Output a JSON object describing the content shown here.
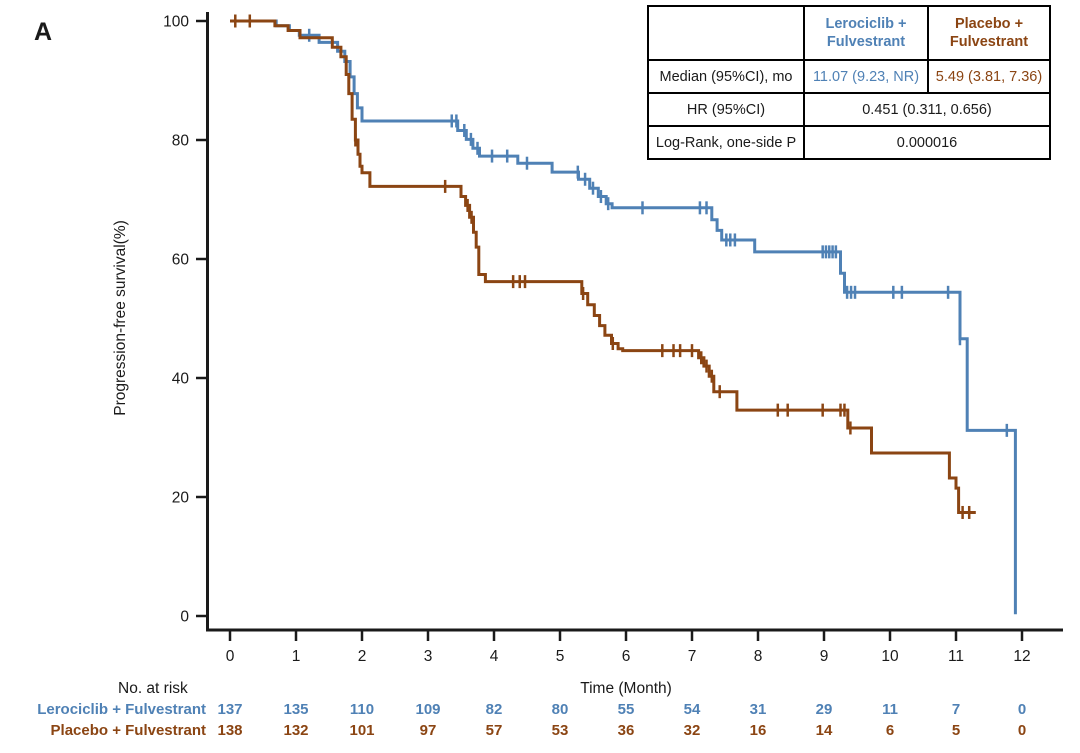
{
  "figure": {
    "panel_label": "A"
  },
  "colors": {
    "lerociclib": "#4F81B5",
    "placebo": "#8B4513",
    "axis": "#1a1a1a"
  },
  "chart_data": {
    "type": "line",
    "subtype": "kaplan-meier-step",
    "title": "",
    "xlabel": "Time (Month)",
    "ylabel": "Progression-free survival(%)",
    "xlim": [
      0,
      12.6
    ],
    "ylim": [
      0,
      100
    ],
    "x_ticks": [
      0,
      1,
      2,
      3,
      4,
      5,
      6,
      7,
      8,
      9,
      10,
      11,
      12
    ],
    "y_ticks": [
      0,
      20,
      40,
      60,
      80,
      100
    ],
    "grid": false,
    "legend_position": "none",
    "series": [
      {
        "name": "Lerociclib + Fulvestrant",
        "color": "#4F81B5",
        "median_95ci_mo": "11.07 (9.23, NR)",
        "steps": [
          [
            0,
            100
          ],
          [
            0.7,
            100
          ],
          [
            0.7,
            99.2
          ],
          [
            0.9,
            99.2
          ],
          [
            0.9,
            98.4
          ],
          [
            1.05,
            98.4
          ],
          [
            1.05,
            97.6
          ],
          [
            1.35,
            97.6
          ],
          [
            1.35,
            96.4
          ],
          [
            1.63,
            96.4
          ],
          [
            1.63,
            94.9
          ],
          [
            1.74,
            94.9
          ],
          [
            1.74,
            93.2
          ],
          [
            1.82,
            93.2
          ],
          [
            1.82,
            90.6
          ],
          [
            1.88,
            90.6
          ],
          [
            1.88,
            87.8
          ],
          [
            1.93,
            87.8
          ],
          [
            1.93,
            85.4
          ],
          [
            2.0,
            85.4
          ],
          [
            2.0,
            83.2
          ],
          [
            3.45,
            83.2
          ],
          [
            3.45,
            81.6
          ],
          [
            3.58,
            81.6
          ],
          [
            3.58,
            80.1
          ],
          [
            3.68,
            80.1
          ],
          [
            3.68,
            78.6
          ],
          [
            3.78,
            78.6
          ],
          [
            3.78,
            77.3
          ],
          [
            4.36,
            77.3
          ],
          [
            4.36,
            76.1
          ],
          [
            4.88,
            76.1
          ],
          [
            4.88,
            74.6
          ],
          [
            5.28,
            74.6
          ],
          [
            5.28,
            73.4
          ],
          [
            5.45,
            73.4
          ],
          [
            5.45,
            71.9
          ],
          [
            5.58,
            71.9
          ],
          [
            5.58,
            70.5
          ],
          [
            5.7,
            70.5
          ],
          [
            5.7,
            69.3
          ],
          [
            5.79,
            69.3
          ],
          [
            5.79,
            68.6
          ],
          [
            7.3,
            68.6
          ],
          [
            7.3,
            66.6
          ],
          [
            7.38,
            66.6
          ],
          [
            7.38,
            64.8
          ],
          [
            7.45,
            64.8
          ],
          [
            7.45,
            63.2
          ],
          [
            7.95,
            63.2
          ],
          [
            7.95,
            61.2
          ],
          [
            9.25,
            61.2
          ],
          [
            9.25,
            57.6
          ],
          [
            9.31,
            57.6
          ],
          [
            9.31,
            54.4
          ],
          [
            11.06,
            54.4
          ],
          [
            11.06,
            46.6
          ],
          [
            11.17,
            46.6
          ],
          [
            11.17,
            31.2
          ],
          [
            11.9,
            31.2
          ],
          [
            11.9,
            0.3
          ]
        ],
        "censors": [
          [
            1.2,
            97.6
          ],
          [
            3.36,
            83.2
          ],
          [
            3.43,
            83.2
          ],
          [
            3.55,
            81.6
          ],
          [
            3.65,
            80.1
          ],
          [
            3.75,
            78.6
          ],
          [
            3.97,
            77.3
          ],
          [
            4.2,
            77.3
          ],
          [
            4.5,
            76.1
          ],
          [
            5.27,
            74.6
          ],
          [
            5.38,
            73.4
          ],
          [
            5.5,
            71.9
          ],
          [
            5.62,
            70.5
          ],
          [
            5.73,
            69.3
          ],
          [
            6.25,
            68.6
          ],
          [
            7.12,
            68.6
          ],
          [
            7.22,
            68.6
          ],
          [
            7.52,
            63.2
          ],
          [
            7.58,
            63.2
          ],
          [
            7.65,
            63.2
          ],
          [
            8.98,
            61.2
          ],
          [
            9.03,
            61.2
          ],
          [
            9.08,
            61.2
          ],
          [
            9.13,
            61.2
          ],
          [
            9.18,
            61.2
          ],
          [
            9.35,
            54.4
          ],
          [
            9.41,
            54.4
          ],
          [
            9.47,
            54.4
          ],
          [
            10.05,
            54.4
          ],
          [
            10.18,
            54.4
          ],
          [
            10.88,
            54.4
          ],
          [
            11.06,
            46.6
          ],
          [
            11.77,
            31.2
          ]
        ]
      },
      {
        "name": "Placebo + Fulvestrant",
        "color": "#8B4513",
        "median_95ci_mo": "5.49 (3.81, 7.36)",
        "steps": [
          [
            0,
            100
          ],
          [
            0.68,
            100
          ],
          [
            0.68,
            99.2
          ],
          [
            0.88,
            99.2
          ],
          [
            0.88,
            98.4
          ],
          [
            1.06,
            98.4
          ],
          [
            1.06,
            97.2
          ],
          [
            1.55,
            97.2
          ],
          [
            1.55,
            95.6
          ],
          [
            1.68,
            95.6
          ],
          [
            1.68,
            94
          ],
          [
            1.76,
            94
          ],
          [
            1.76,
            91
          ],
          [
            1.8,
            91
          ],
          [
            1.8,
            87.8
          ],
          [
            1.85,
            87.8
          ],
          [
            1.85,
            83.5
          ],
          [
            1.9,
            83.5
          ],
          [
            1.9,
            80
          ],
          [
            1.94,
            80
          ],
          [
            1.94,
            77.6
          ],
          [
            1.97,
            77.6
          ],
          [
            1.97,
            75.6
          ],
          [
            2.0,
            75.6
          ],
          [
            2.0,
            74.5
          ],
          [
            2.12,
            74.5
          ],
          [
            2.12,
            72.2
          ],
          [
            3.5,
            72.2
          ],
          [
            3.5,
            70.5
          ],
          [
            3.57,
            70.5
          ],
          [
            3.57,
            69
          ],
          [
            3.63,
            69
          ],
          [
            3.63,
            67
          ],
          [
            3.69,
            67
          ],
          [
            3.69,
            64.5
          ],
          [
            3.73,
            64.5
          ],
          [
            3.73,
            62
          ],
          [
            3.77,
            62
          ],
          [
            3.77,
            57.4
          ],
          [
            3.87,
            57.4
          ],
          [
            3.87,
            56.2
          ],
          [
            5.33,
            56.2
          ],
          [
            5.33,
            54.2
          ],
          [
            5.42,
            54.2
          ],
          [
            5.42,
            52.3
          ],
          [
            5.52,
            52.3
          ],
          [
            5.52,
            50.5
          ],
          [
            5.6,
            50.5
          ],
          [
            5.6,
            48.8
          ],
          [
            5.68,
            48.8
          ],
          [
            5.68,
            47.2
          ],
          [
            5.78,
            47.2
          ],
          [
            5.78,
            45.8
          ],
          [
            5.88,
            45.8
          ],
          [
            5.88,
            44.9
          ],
          [
            5.95,
            44.9
          ],
          [
            5.95,
            44.6
          ],
          [
            7.1,
            44.6
          ],
          [
            7.1,
            43.4
          ],
          [
            7.18,
            43.4
          ],
          [
            7.18,
            42
          ],
          [
            7.26,
            42
          ],
          [
            7.26,
            40.3
          ],
          [
            7.33,
            40.3
          ],
          [
            7.33,
            37.7
          ],
          [
            7.68,
            37.7
          ],
          [
            7.68,
            34.6
          ],
          [
            9.36,
            34.6
          ],
          [
            9.36,
            31.6
          ],
          [
            9.72,
            31.6
          ],
          [
            9.72,
            27.4
          ],
          [
            10.9,
            27.4
          ],
          [
            10.9,
            23.2
          ],
          [
            11.0,
            23.2
          ],
          [
            11.0,
            21.5
          ],
          [
            11.04,
            21.5
          ],
          [
            11.04,
            17.4
          ],
          [
            11.3,
            17.4
          ]
        ],
        "censors": [
          [
            0.08,
            100
          ],
          [
            0.3,
            100
          ],
          [
            1.9,
            80
          ],
          [
            3.26,
            72.2
          ],
          [
            3.6,
            69
          ],
          [
            3.66,
            67
          ],
          [
            4.29,
            56.2
          ],
          [
            4.39,
            56.2
          ],
          [
            4.47,
            56.2
          ],
          [
            5.35,
            54.2
          ],
          [
            5.8,
            45.8
          ],
          [
            6.55,
            44.6
          ],
          [
            6.72,
            44.6
          ],
          [
            6.82,
            44.6
          ],
          [
            7.0,
            44.6
          ],
          [
            7.14,
            43.4
          ],
          [
            7.22,
            42
          ],
          [
            7.3,
            40.3
          ],
          [
            7.42,
            37.7
          ],
          [
            8.3,
            34.6
          ],
          [
            8.45,
            34.6
          ],
          [
            8.98,
            34.6
          ],
          [
            9.25,
            34.6
          ],
          [
            9.31,
            34.6
          ],
          [
            9.4,
            31.6
          ],
          [
            11.1,
            17.4
          ],
          [
            11.2,
            17.4
          ]
        ]
      }
    ]
  },
  "stats_table": {
    "header": {
      "blank": "",
      "col_a": "Lerociclib +\nFulvestrant",
      "col_b": "Placebo +\nFulvestrant"
    },
    "rows": {
      "median": {
        "label": "Median (95%CI), mo",
        "col_a": "11.07 (9.23, NR)",
        "col_b": "5.49 (3.81, 7.36)"
      },
      "hr": {
        "label": "HR (95%CI)",
        "value": "0.451 (0.311, 0.656)"
      },
      "logrank": {
        "label": "Log-Rank, one-side P",
        "value": "0.000016"
      }
    }
  },
  "risk_table": {
    "title": "No. at risk",
    "rows": [
      {
        "label": "Lerociclib + Fulvestrant",
        "color": "#4F81B5",
        "values": [
          137,
          135,
          110,
          109,
          82,
          80,
          55,
          54,
          31,
          29,
          11,
          7,
          0
        ]
      },
      {
        "label": "Placebo + Fulvestrant",
        "color": "#8B4513",
        "values": [
          138,
          132,
          101,
          97,
          57,
          53,
          36,
          32,
          16,
          14,
          6,
          5,
          0
        ]
      }
    ]
  }
}
